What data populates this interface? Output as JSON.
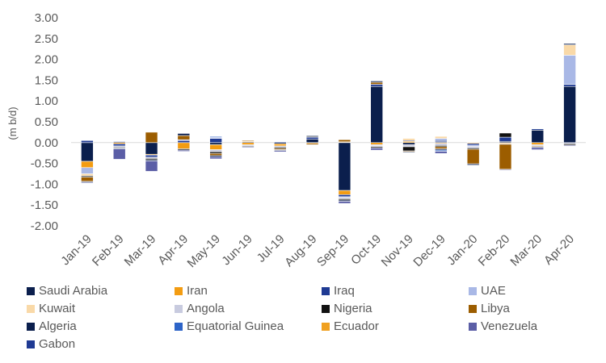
{
  "chart_data": {
    "type": "bar",
    "stacked": true,
    "ylabel": "(m b/d)",
    "ylim": [
      -2.0,
      3.0
    ],
    "yticks": [
      "3.00",
      "2.50",
      "2.00",
      "1.50",
      "1.00",
      "0.50",
      "0.00",
      "-0.50",
      "-1.00",
      "-1.50",
      "-2.00"
    ],
    "categories": [
      "Jan-19",
      "Feb-19",
      "Mar-19",
      "Apr-19",
      "May-19",
      "Jun-19",
      "Jul-19",
      "Aug-19",
      "Sep-19",
      "Oct-19",
      "Nov-19",
      "Dec-19",
      "Jan-20",
      "Feb-20",
      "Mar-20",
      "Apr-20"
    ],
    "legend_position": "bottom",
    "series": [
      {
        "name": "Saudi Arabia",
        "color": "#0b1f4d",
        "values": [
          -0.45,
          0.02,
          -0.28,
          0.0,
          -0.05,
          0.02,
          -0.03,
          0.08,
          -1.15,
          1.35,
          -0.05,
          0.02,
          0.0,
          0.03,
          0.3,
          1.35
        ]
      },
      {
        "name": "Iran",
        "color": "#f39c12",
        "values": [
          -0.15,
          -0.03,
          -0.02,
          -0.15,
          -0.12,
          -0.05,
          -0.05,
          -0.02,
          -0.1,
          -0.05,
          0.03,
          -0.02,
          -0.02,
          -0.02,
          -0.05,
          0.0
        ]
      },
      {
        "name": "Iraq",
        "color": "#1f3a93",
        "values": [
          0.05,
          -0.05,
          -0.05,
          0.05,
          0.1,
          0.0,
          0.02,
          0.05,
          -0.05,
          0.05,
          0.02,
          0.03,
          -0.04,
          0.1,
          0.03,
          0.05
        ]
      },
      {
        "name": "UAE",
        "color": "#a9b8e6",
        "values": [
          -0.15,
          0.02,
          0.0,
          0.02,
          0.03,
          0.0,
          0.0,
          0.0,
          -0.02,
          -0.02,
          0.0,
          0.05,
          -0.03,
          0.0,
          0.0,
          0.7
        ]
      },
      {
        "name": "Kuwait",
        "color": "#f9d9a8",
        "values": [
          -0.05,
          0.0,
          0.0,
          0.0,
          0.0,
          0.02,
          0.0,
          0.0,
          0.02,
          0.0,
          0.03,
          0.05,
          0.0,
          0.0,
          0.0,
          0.25
        ]
      },
      {
        "name": "Angola",
        "color": "#c8cbdf",
        "values": [
          0.0,
          -0.03,
          -0.03,
          0.0,
          -0.05,
          -0.03,
          -0.03,
          0.0,
          -0.03,
          -0.03,
          -0.05,
          -0.05,
          -0.04,
          -0.02,
          -0.03,
          -0.03
        ]
      },
      {
        "name": "Nigeria",
        "color": "#111111",
        "values": [
          -0.03,
          -0.02,
          -0.03,
          -0.03,
          -0.04,
          -0.02,
          -0.03,
          0.02,
          -0.03,
          -0.03,
          -0.1,
          -0.03,
          -0.03,
          0.1,
          0.0,
          -0.03
        ]
      },
      {
        "name": "Libya",
        "color": "#9c5d00",
        "values": [
          -0.1,
          0.0,
          0.25,
          0.1,
          -0.05,
          0.02,
          -0.03,
          -0.03,
          0.05,
          0.05,
          -0.02,
          -0.05,
          -0.35,
          -0.6,
          -0.02,
          0.0
        ]
      },
      {
        "name": "Algeria",
        "color": "#0b1f4d",
        "values": [
          -0.02,
          -0.02,
          -0.03,
          0.05,
          -0.03,
          0.0,
          -0.02,
          0.02,
          -0.03,
          0.03,
          -0.02,
          -0.03,
          -0.03,
          0.0,
          -0.02,
          0.03
        ]
      },
      {
        "name": "Equatorial Guinea",
        "color": "#2d64c8",
        "values": [
          0.0,
          0.0,
          0.0,
          0.0,
          0.02,
          0.0,
          0.0,
          0.0,
          0.0,
          0.0,
          0.0,
          -0.03,
          0.0,
          0.0,
          0.0,
          0.0
        ]
      },
      {
        "name": "Ecuador",
        "color": "#f0a020",
        "values": [
          0.0,
          0.0,
          0.0,
          0.0,
          0.0,
          0.0,
          0.0,
          0.0,
          0.0,
          0.0,
          0.02,
          0.0,
          0.0,
          0.0,
          0.0,
          0.0
        ]
      },
      {
        "name": "Venezuela",
        "color": "#5b5ea6",
        "values": [
          -0.02,
          -0.25,
          -0.25,
          -0.03,
          -0.05,
          -0.02,
          -0.03,
          0.0,
          -0.05,
          -0.05,
          0.0,
          -0.05,
          0.0,
          -0.02,
          -0.05,
          -0.02
        ]
      },
      {
        "name": "Gabon",
        "color": "#1f3a93",
        "values": [
          0.0,
          0.0,
          0.0,
          0.0,
          0.0,
          0.0,
          0.0,
          0.0,
          0.0,
          0.0,
          0.0,
          0.0,
          0.0,
          0.0,
          0.0,
          0.0
        ]
      }
    ]
  }
}
